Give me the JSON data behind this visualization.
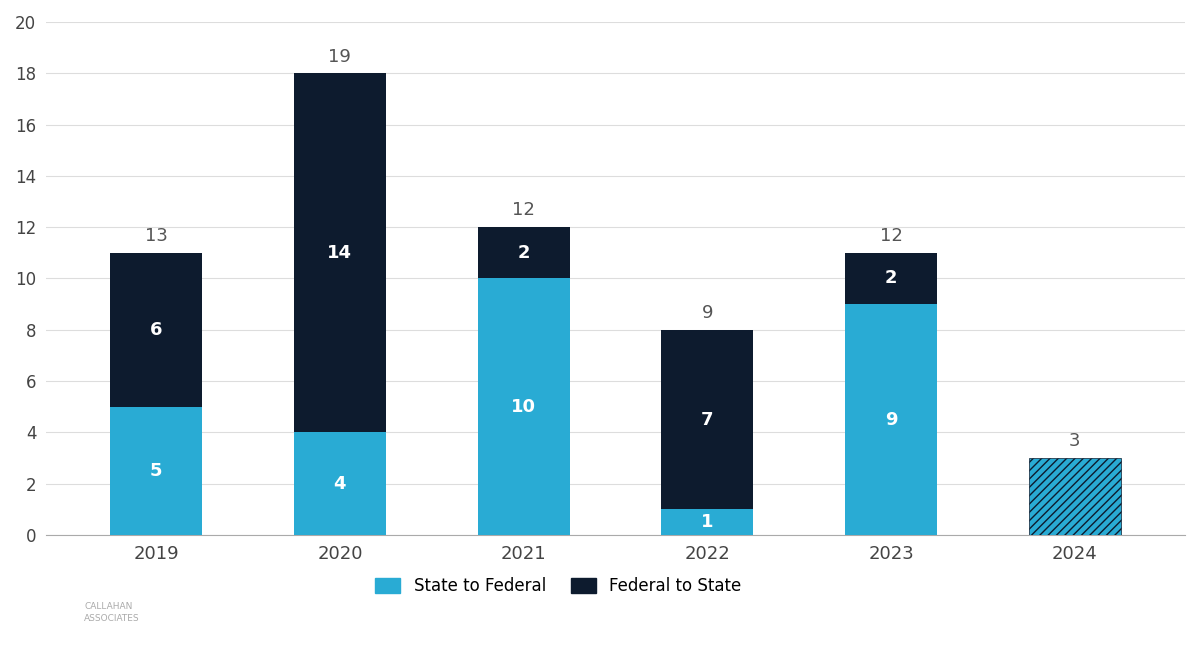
{
  "years": [
    "2019",
    "2020",
    "2021",
    "2022",
    "2023",
    "2024"
  ],
  "state_to_federal": [
    5,
    4,
    10,
    1,
    9,
    3
  ],
  "federal_to_state": [
    6,
    14,
    2,
    7,
    2,
    0
  ],
  "totals": [
    13,
    19,
    12,
    9,
    12,
    3
  ],
  "color_state_to_federal": "#29ABD4",
  "color_federal_to_state": "#0D1B2E",
  "color_hatch_state": "#29ABD4",
  "color_hatch_federal": "#0D1B2E",
  "background_color": "#FFFFFF",
  "ylim": [
    0,
    20
  ],
  "yticks": [
    0,
    2,
    4,
    6,
    8,
    10,
    12,
    14,
    16,
    18,
    20
  ],
  "legend_state_to_federal": "State to Federal",
  "legend_federal_to_state": "Federal to State",
  "label_color": "#FFFFFF",
  "total_label_color": "#555555",
  "bar_width": 0.5,
  "figsize": [
    12.0,
    6.49
  ],
  "dpi": 100
}
